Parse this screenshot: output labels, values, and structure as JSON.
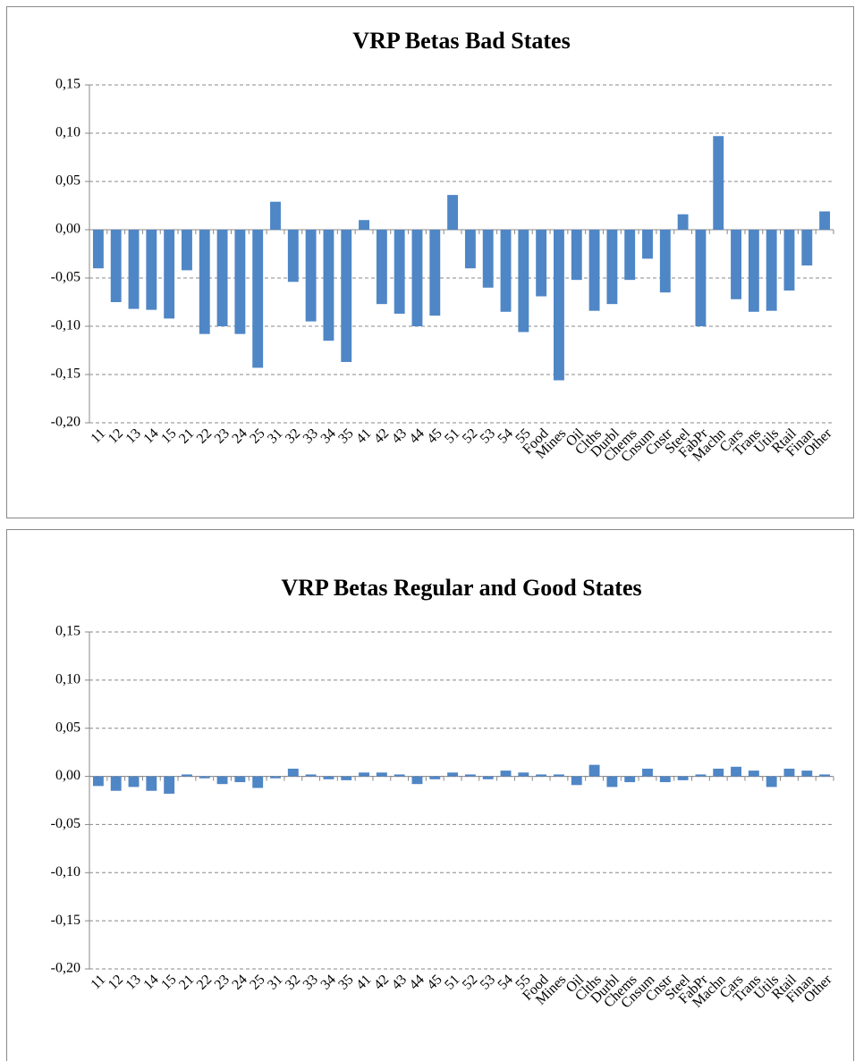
{
  "chart_data": [
    {
      "type": "bar",
      "title": "VRP Betas Bad States",
      "color": "#4f86c6",
      "grid": true,
      "categories": [
        "11",
        "12",
        "13",
        "14",
        "15",
        "21",
        "22",
        "23",
        "24",
        "25",
        "31",
        "32",
        "33",
        "34",
        "35",
        "41",
        "42",
        "43",
        "44",
        "45",
        "51",
        "52",
        "53",
        "54",
        "55",
        "Food",
        "Mines",
        "Oil",
        "Clths",
        "Durbl",
        "Chems",
        "Cnsum",
        "Cnstr",
        "Steel",
        "FabPr",
        "Machn",
        "Cars",
        "Trans",
        "Utils",
        "Rtail",
        "Finan",
        "Other"
      ],
      "values": [
        -0.04,
        -0.075,
        -0.082,
        -0.083,
        -0.092,
        -0.042,
        -0.108,
        -0.1,
        -0.108,
        -0.143,
        0.029,
        -0.054,
        -0.095,
        -0.115,
        -0.137,
        0.01,
        -0.077,
        -0.087,
        -0.1,
        -0.089,
        0.036,
        -0.04,
        -0.06,
        -0.085,
        -0.106,
        -0.069,
        -0.156,
        -0.052,
        -0.084,
        -0.077,
        -0.052,
        -0.03,
        -0.065,
        0.016,
        -0.1,
        0.097,
        -0.072,
        -0.085,
        -0.084,
        -0.063,
        -0.037,
        0.019
      ],
      "ylim": [
        -0.2,
        0.15
      ],
      "yticks": [
        {
          "value": -0.2,
          "label": "-0,20"
        },
        {
          "value": -0.15,
          "label": "-0,15"
        },
        {
          "value": -0.1,
          "label": "-0,10"
        },
        {
          "value": -0.05,
          "label": "-0,05"
        },
        {
          "value": 0,
          "label": "0,00"
        },
        {
          "value": 0.05,
          "label": "0,05"
        },
        {
          "value": 0.1,
          "label": "0,10"
        },
        {
          "value": 0.15,
          "label": "0,15"
        }
      ]
    },
    {
      "type": "bar",
      "title": "VRP Betas Regular and Good States",
      "color": "#4f86c6",
      "grid": true,
      "categories": [
        "11",
        "12",
        "13",
        "14",
        "15",
        "21",
        "22",
        "23",
        "24",
        "25",
        "31",
        "32",
        "33",
        "34",
        "35",
        "41",
        "42",
        "43",
        "44",
        "45",
        "51",
        "52",
        "53",
        "54",
        "55",
        "Food",
        "Mines",
        "Oil",
        "Clths",
        "Durbl",
        "Chems",
        "Cnsum",
        "Cnstr",
        "Steel",
        "FabPr",
        "Machn",
        "Cars",
        "Trans",
        "Utils",
        "Rtail",
        "Finan",
        "Other"
      ],
      "values": [
        -0.01,
        -0.015,
        -0.011,
        -0.015,
        -0.018,
        0.002,
        -0.002,
        -0.008,
        -0.006,
        -0.012,
        -0.002,
        0.008,
        0.002,
        -0.003,
        -0.004,
        0.004,
        0.004,
        0.002,
        -0.008,
        -0.003,
        0.004,
        0.002,
        -0.003,
        0.006,
        0.004,
        0.002,
        0.002,
        -0.009,
        0.012,
        -0.011,
        -0.006,
        0.008,
        -0.006,
        -0.004,
        0.002,
        0.008,
        0.01,
        0.006,
        -0.011,
        0.008,
        0.006,
        0.002
      ],
      "ylim": [
        -0.2,
        0.15
      ],
      "yticks": [
        {
          "value": -0.2,
          "label": "-0,20"
        },
        {
          "value": -0.15,
          "label": "-0,15"
        },
        {
          "value": -0.1,
          "label": "-0,10"
        },
        {
          "value": -0.05,
          "label": "-0,05"
        },
        {
          "value": 0,
          "label": "0,00"
        },
        {
          "value": 0.05,
          "label": "0,05"
        },
        {
          "value": 0.1,
          "label": "0,10"
        },
        {
          "value": 0.15,
          "label": "0,15"
        }
      ]
    }
  ]
}
